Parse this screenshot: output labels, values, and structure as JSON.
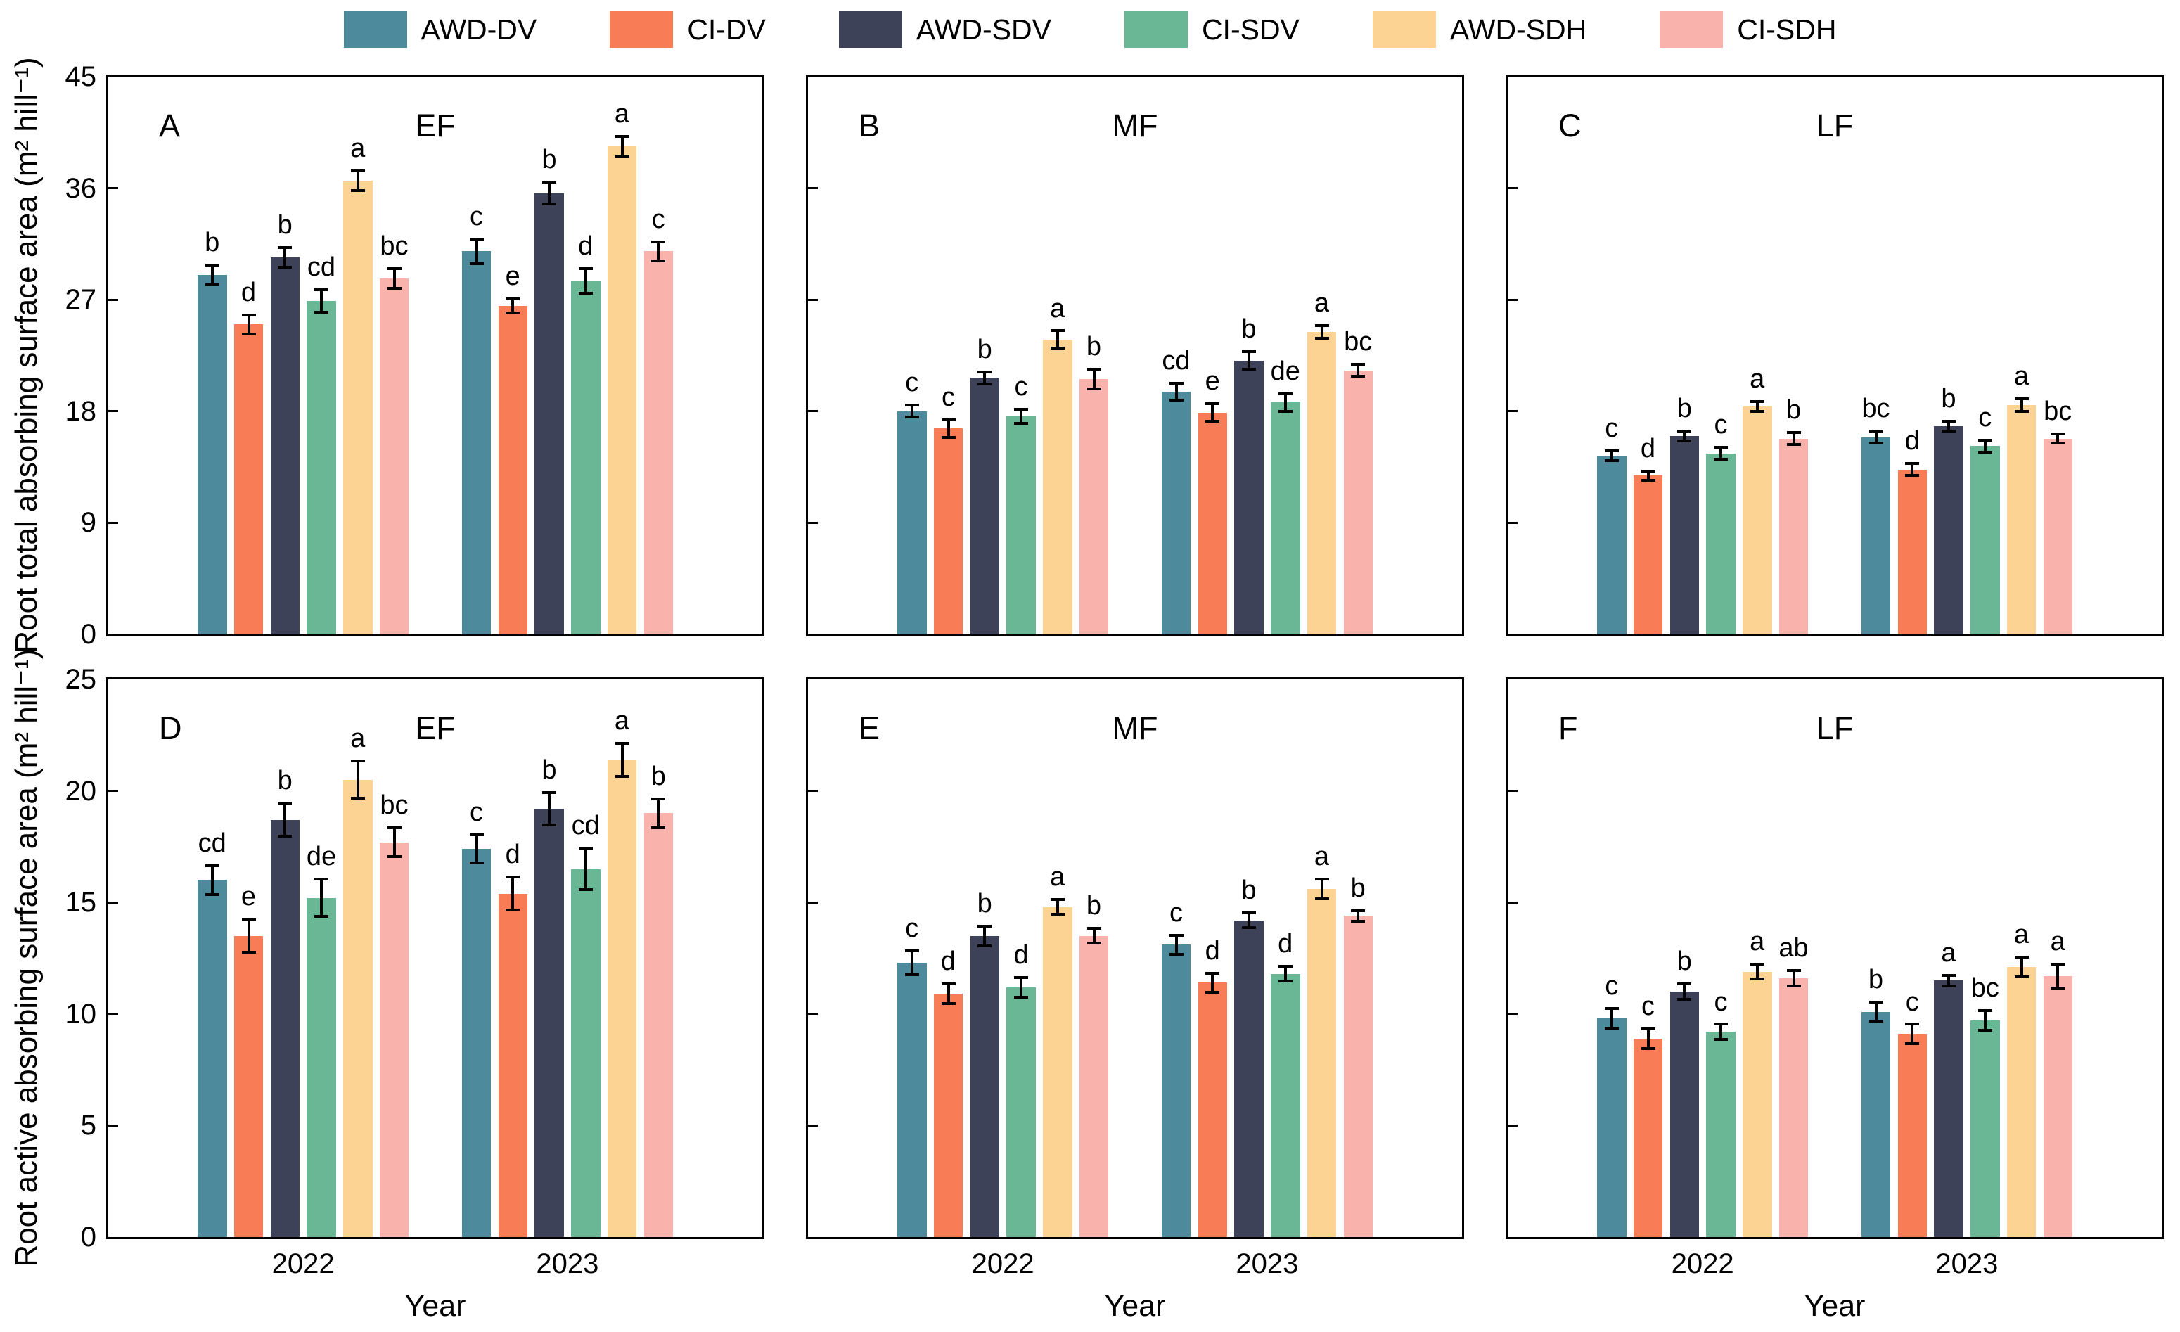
{
  "legend": {
    "items": [
      {
        "label": "AWD-DV",
        "color": "#4d8a9b"
      },
      {
        "label": "CI-DV",
        "color": "#f87c56"
      },
      {
        "label": "AWD-SDV",
        "color": "#3d4259"
      },
      {
        "label": "CI-SDV",
        "color": "#69b795"
      },
      {
        "label": "AWD-SDH",
        "color": "#fcd392"
      },
      {
        "label": "CI-SDH",
        "color": "#f9b2ac"
      }
    ]
  },
  "figure": {
    "x_axis_title": "Year",
    "x_categories": [
      "2022",
      "2023"
    ],
    "y_axis_titles": [
      "Root total absorbing surface area (m² hill⁻¹)",
      "Root active absorbing surface area (m² hill⁻¹)"
    ]
  },
  "chart_data": [
    {
      "type": "bar",
      "panel_letter": "A",
      "title": "EF",
      "row": 0,
      "col": 0,
      "ylabel": "Root total absorbing surface area (m² hill⁻¹)",
      "ylim": [
        0,
        45
      ],
      "yticks": [
        0,
        9,
        18,
        27,
        36,
        45
      ],
      "grid": false,
      "legend_position": "top",
      "categories": [
        "2022",
        "2023"
      ],
      "series": [
        {
          "name": "AWD-DV",
          "values": [
            29.0,
            30.9
          ],
          "errors": [
            0.9,
            1.1
          ],
          "letters": [
            "b",
            "c"
          ]
        },
        {
          "name": "CI-DV",
          "values": [
            25.0,
            26.5
          ],
          "errors": [
            0.9,
            0.7
          ],
          "letters": [
            "d",
            "e"
          ]
        },
        {
          "name": "AWD-SDV",
          "values": [
            30.4,
            35.6
          ],
          "errors": [
            0.9,
            1.0
          ],
          "letters": [
            "b",
            "b"
          ]
        },
        {
          "name": "CI-SDV",
          "values": [
            26.9,
            28.5
          ],
          "errors": [
            1.0,
            1.1
          ],
          "letters": [
            "cd",
            "d"
          ]
        },
        {
          "name": "AWD-SDH",
          "values": [
            36.6,
            39.4
          ],
          "errors": [
            0.9,
            0.9
          ],
          "letters": [
            "a",
            "a"
          ]
        },
        {
          "name": "CI-SDH",
          "values": [
            28.7,
            30.9
          ],
          "errors": [
            0.9,
            0.9
          ],
          "letters": [
            "bc",
            "c"
          ]
        }
      ]
    },
    {
      "type": "bar",
      "panel_letter": "B",
      "title": "MF",
      "row": 0,
      "col": 1,
      "ylim": [
        0,
        45
      ],
      "yticks": [
        0,
        9,
        18,
        27,
        36,
        45
      ],
      "categories": [
        "2022",
        "2023"
      ],
      "series": [
        {
          "name": "AWD-DV",
          "values": [
            18.0,
            19.6
          ],
          "errors": [
            0.6,
            0.8
          ],
          "letters": [
            "c",
            "cd"
          ]
        },
        {
          "name": "CI-DV",
          "values": [
            16.6,
            17.9
          ],
          "errors": [
            0.8,
            0.8
          ],
          "letters": [
            "c",
            "e"
          ]
        },
        {
          "name": "AWD-SDV",
          "values": [
            20.7,
            22.1
          ],
          "errors": [
            0.6,
            0.8
          ],
          "letters": [
            "b",
            "b"
          ]
        },
        {
          "name": "CI-SDV",
          "values": [
            17.6,
            18.7
          ],
          "errors": [
            0.7,
            0.8
          ],
          "letters": [
            "c",
            "de"
          ]
        },
        {
          "name": "AWD-SDH",
          "values": [
            23.8,
            24.4
          ],
          "errors": [
            0.8,
            0.6
          ],
          "letters": [
            "a",
            "a"
          ]
        },
        {
          "name": "CI-SDH",
          "values": [
            20.6,
            21.3
          ],
          "errors": [
            0.9,
            0.6
          ],
          "letters": [
            "b",
            "bc"
          ]
        }
      ]
    },
    {
      "type": "bar",
      "panel_letter": "C",
      "title": "LF",
      "row": 0,
      "col": 2,
      "ylim": [
        0,
        45
      ],
      "yticks": [
        0,
        9,
        18,
        27,
        36,
        45
      ],
      "categories": [
        "2022",
        "2023"
      ],
      "series": [
        {
          "name": "AWD-DV",
          "values": [
            14.4,
            15.9
          ],
          "errors": [
            0.5,
            0.6
          ],
          "letters": [
            "c",
            "bc"
          ]
        },
        {
          "name": "CI-DV",
          "values": [
            12.8,
            13.3
          ],
          "errors": [
            0.5,
            0.6
          ],
          "letters": [
            "d",
            "d"
          ]
        },
        {
          "name": "AWD-SDV",
          "values": [
            16.0,
            16.8
          ],
          "errors": [
            0.5,
            0.5
          ],
          "letters": [
            "b",
            "b"
          ]
        },
        {
          "name": "CI-SDV",
          "values": [
            14.6,
            15.2
          ],
          "errors": [
            0.6,
            0.6
          ],
          "letters": [
            "c",
            "c"
          ]
        },
        {
          "name": "AWD-SDH",
          "values": [
            18.4,
            18.5
          ],
          "errors": [
            0.5,
            0.6
          ],
          "letters": [
            "a",
            "a"
          ]
        },
        {
          "name": "CI-SDH",
          "values": [
            15.8,
            15.8
          ],
          "errors": [
            0.6,
            0.5
          ],
          "letters": [
            "b",
            "bc"
          ]
        }
      ]
    },
    {
      "type": "bar",
      "panel_letter": "D",
      "title": "EF",
      "row": 1,
      "col": 0,
      "ylabel": "Root active absorbing surface area (m² hill⁻¹)",
      "ylim": [
        0,
        25
      ],
      "yticks": [
        0,
        5,
        10,
        15,
        20,
        25
      ],
      "xlabel": "Year",
      "categories": [
        "2022",
        "2023"
      ],
      "series": [
        {
          "name": "AWD-DV",
          "values": [
            16.0,
            17.4
          ],
          "errors": [
            0.7,
            0.7
          ],
          "letters": [
            "cd",
            "c"
          ]
        },
        {
          "name": "CI-DV",
          "values": [
            13.5,
            15.4
          ],
          "errors": [
            0.8,
            0.8
          ],
          "letters": [
            "e",
            "d"
          ]
        },
        {
          "name": "AWD-SDV",
          "values": [
            18.7,
            19.2
          ],
          "errors": [
            0.8,
            0.8
          ],
          "letters": [
            "b",
            "b"
          ]
        },
        {
          "name": "CI-SDV",
          "values": [
            15.2,
            16.5
          ],
          "errors": [
            0.9,
            1.0
          ],
          "letters": [
            "de",
            "cd"
          ]
        },
        {
          "name": "AWD-SDH",
          "values": [
            20.5,
            21.4
          ],
          "errors": [
            0.9,
            0.8
          ],
          "letters": [
            "a",
            "a"
          ]
        },
        {
          "name": "CI-SDH",
          "values": [
            17.7,
            19.0
          ],
          "errors": [
            0.7,
            0.7
          ],
          "letters": [
            "bc",
            "b"
          ]
        }
      ]
    },
    {
      "type": "bar",
      "panel_letter": "E",
      "title": "MF",
      "row": 1,
      "col": 1,
      "ylim": [
        0,
        25
      ],
      "yticks": [
        0,
        5,
        10,
        15,
        20,
        25
      ],
      "xlabel": "Year",
      "categories": [
        "2022",
        "2023"
      ],
      "series": [
        {
          "name": "AWD-DV",
          "values": [
            12.3,
            13.1
          ],
          "errors": [
            0.6,
            0.5
          ],
          "letters": [
            "c",
            "c"
          ]
        },
        {
          "name": "CI-DV",
          "values": [
            10.9,
            11.4
          ],
          "errors": [
            0.5,
            0.5
          ],
          "letters": [
            "d",
            "d"
          ]
        },
        {
          "name": "AWD-SDV",
          "values": [
            13.5,
            14.2
          ],
          "errors": [
            0.5,
            0.4
          ],
          "letters": [
            "b",
            "b"
          ]
        },
        {
          "name": "CI-SDV",
          "values": [
            11.2,
            11.8
          ],
          "errors": [
            0.5,
            0.4
          ],
          "letters": [
            "d",
            "d"
          ]
        },
        {
          "name": "AWD-SDH",
          "values": [
            14.8,
            15.6
          ],
          "errors": [
            0.4,
            0.5
          ],
          "letters": [
            "a",
            "a"
          ]
        },
        {
          "name": "CI-SDH",
          "values": [
            13.5,
            14.4
          ],
          "errors": [
            0.4,
            0.3
          ],
          "letters": [
            "b",
            "b"
          ]
        }
      ]
    },
    {
      "type": "bar",
      "panel_letter": "F",
      "title": "LF",
      "row": 1,
      "col": 2,
      "ylim": [
        0,
        25
      ],
      "yticks": [
        0,
        5,
        10,
        15,
        20,
        25
      ],
      "xlabel": "Year",
      "categories": [
        "2022",
        "2023"
      ],
      "series": [
        {
          "name": "AWD-DV",
          "values": [
            9.8,
            10.1
          ],
          "errors": [
            0.5,
            0.5
          ],
          "letters": [
            "c",
            "b"
          ]
        },
        {
          "name": "CI-DV",
          "values": [
            8.9,
            9.1
          ],
          "errors": [
            0.5,
            0.5
          ],
          "letters": [
            "c",
            "c"
          ]
        },
        {
          "name": "AWD-SDV",
          "values": [
            11.0,
            11.5
          ],
          "errors": [
            0.4,
            0.3
          ],
          "letters": [
            "b",
            "a"
          ]
        },
        {
          "name": "CI-SDV",
          "values": [
            9.2,
            9.7
          ],
          "errors": [
            0.4,
            0.5
          ],
          "letters": [
            "c",
            "bc"
          ]
        },
        {
          "name": "AWD-SDH",
          "values": [
            11.9,
            12.1
          ],
          "errors": [
            0.4,
            0.5
          ],
          "letters": [
            "a",
            "a"
          ]
        },
        {
          "name": "CI-SDH",
          "values": [
            11.6,
            11.7
          ],
          "errors": [
            0.4,
            0.6
          ],
          "letters": [
            "ab",
            "a"
          ]
        }
      ]
    }
  ]
}
